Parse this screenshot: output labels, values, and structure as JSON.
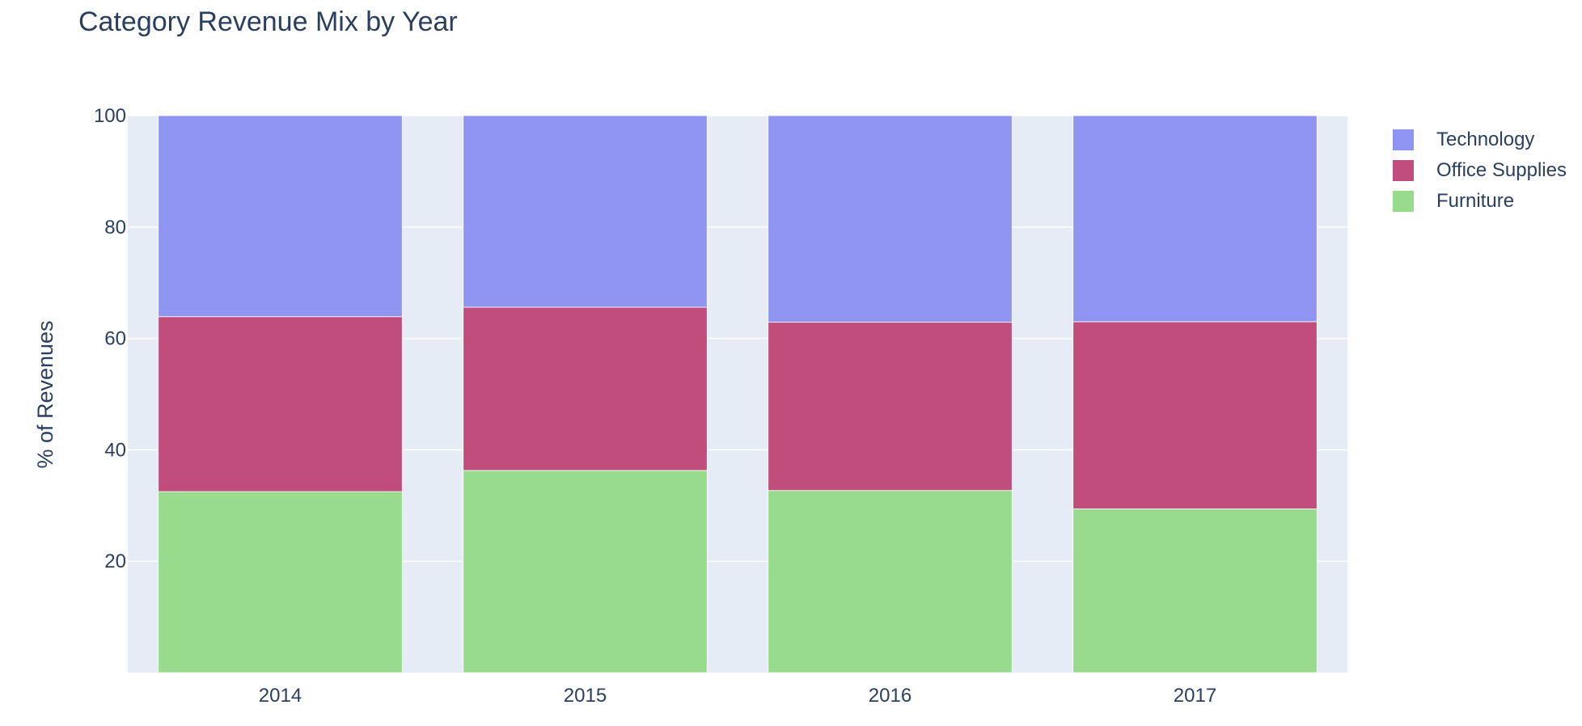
{
  "chart_data": {
    "type": "bar",
    "stacked": true,
    "title": "Category Revenue Mix by Year",
    "xlabel": "",
    "ylabel": "% of Revenues",
    "categories": [
      "2014",
      "2015",
      "2016",
      "2017"
    ],
    "ylim": [
      0,
      100
    ],
    "yticks": [
      "20",
      "40",
      "60",
      "80",
      "100"
    ],
    "grid": true,
    "legend_position": "top-right",
    "series": [
      {
        "name": "Furniture",
        "color": "#98db8c",
        "values": [
          32.5,
          36.3,
          32.7,
          29.4
        ]
      },
      {
        "name": "Office Supplies",
        "color": "#c14d7c",
        "values": [
          31.4,
          29.3,
          30.2,
          33.6
        ]
      },
      {
        "name": "Technology",
        "color": "#9095f2",
        "values": [
          36.1,
          34.4,
          37.1,
          37.0
        ]
      }
    ],
    "legend_order": [
      "Technology",
      "Office Supplies",
      "Furniture"
    ],
    "plot_background": "#e5ecf6"
  }
}
